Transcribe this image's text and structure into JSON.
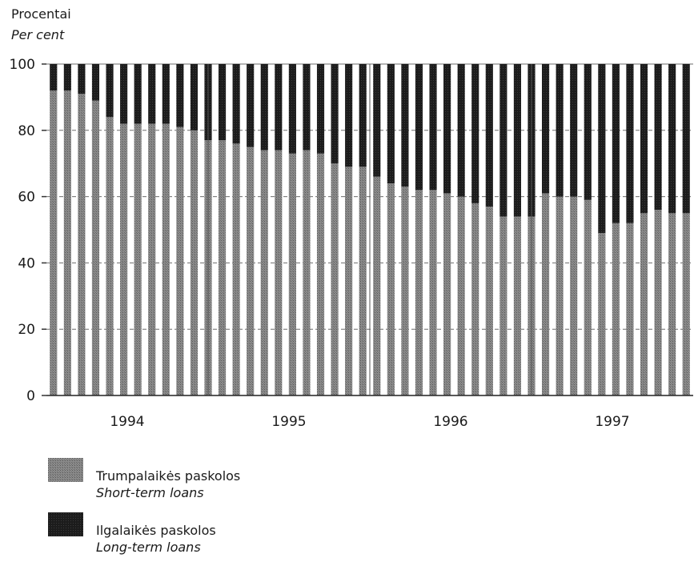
{
  "chart_data": {
    "type": "bar",
    "stacked": true,
    "ylabel_lt": "Procentai",
    "ylabel_en": "Per cent",
    "ylim": [
      0,
      100
    ],
    "yticks": [
      0,
      20,
      40,
      60,
      80,
      100
    ],
    "grid": "dashed horizontal lines",
    "year_labels": [
      "1994",
      "1995",
      "1996",
      "1997"
    ],
    "series": [
      {
        "key": "short",
        "name_lt": "Trumpalaikės paskolos",
        "name_en": "Short-term loans",
        "color": "#7a7a7a",
        "values": [
          92,
          92,
          91,
          89,
          84,
          82,
          82,
          82,
          82,
          81,
          80,
          77,
          77,
          76,
          75,
          74,
          74,
          73,
          74,
          73,
          70,
          69,
          69,
          66,
          64,
          63,
          62,
          62,
          61,
          60,
          58,
          57,
          54,
          54,
          54,
          61,
          60,
          60,
          59,
          49,
          52,
          52,
          55,
          56,
          55,
          55
        ]
      },
      {
        "key": "long",
        "name_lt": "Ilgalaikės paskolos",
        "name_en": "Long-term loans",
        "color": "#1c1c1c",
        "values": [
          8,
          8,
          9,
          11,
          16,
          18,
          18,
          18,
          18,
          19,
          20,
          23,
          23,
          24,
          25,
          26,
          26,
          27,
          26,
          27,
          30,
          31,
          31,
          34,
          36,
          37,
          38,
          38,
          39,
          40,
          42,
          43,
          46,
          46,
          46,
          39,
          40,
          40,
          41,
          51,
          48,
          48,
          45,
          44,
          45,
          45
        ]
      }
    ]
  }
}
